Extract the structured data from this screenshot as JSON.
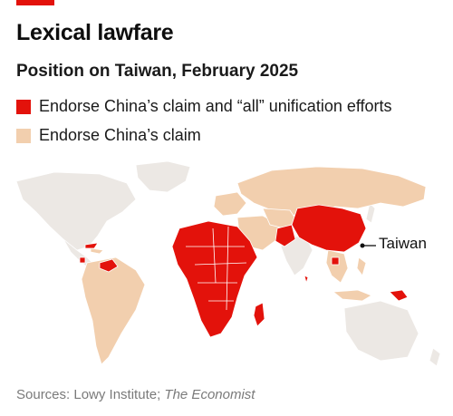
{
  "header": {
    "title": "Lexical lawfare",
    "subtitle": "Position on Taiwan, February 2025"
  },
  "legend": [
    {
      "label": "Endorse China’s claim and “all” unification efforts",
      "color": "#e3120b"
    },
    {
      "label": "Endorse China’s claim",
      "color": "#f2cfae"
    }
  ],
  "map": {
    "annotation": "Taiwan",
    "colors": {
      "land_other": "#ece8e4",
      "endorse": "#f2cfae",
      "endorse_all": "#e3120b",
      "border": "#ffffff"
    }
  },
  "source": {
    "prefix": "Sources: Lowy Institute; ",
    "publication": "The Economist"
  }
}
